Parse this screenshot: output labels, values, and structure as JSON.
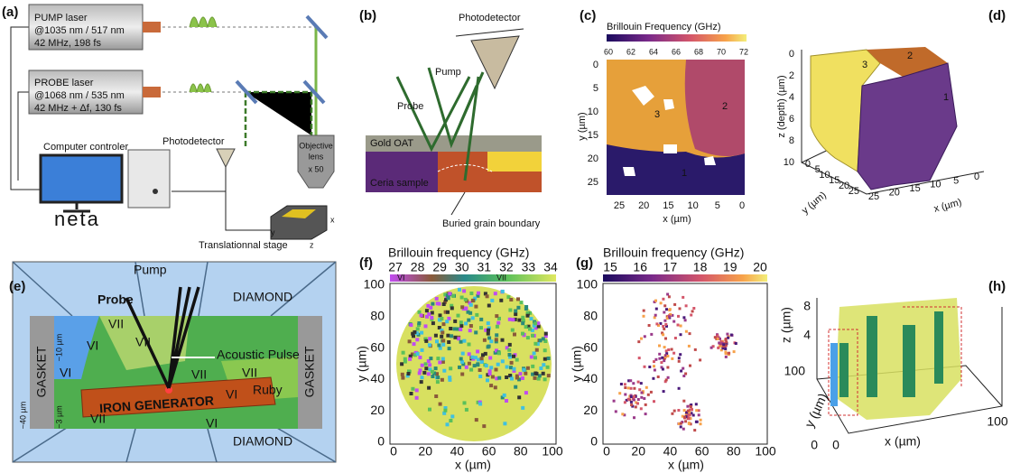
{
  "a": {
    "label": "(a)",
    "pump_laser": [
      "PUMP laser",
      "@1035 nm / 517 nm",
      "42 MHz, 198 fs"
    ],
    "probe_laser": [
      "PROBE laser",
      "@1068 nm / 535 nm",
      "42 MHz + Δf, 130 fs"
    ],
    "computer": "Computer controler",
    "brand": "neta",
    "photodetector": "Photodetector",
    "objective": [
      "Objective",
      "lens",
      "x 50"
    ],
    "stage": "Translationnal stage",
    "stage_axes": [
      "x",
      "y",
      "z"
    ]
  },
  "b": {
    "label": "(b)",
    "photodetector": "Photodetector",
    "pump": "Pump",
    "probe": "Probe",
    "layer": "Gold OAT",
    "sample": "Ceria sample",
    "boundary": "Buried grain boundary"
  },
  "c": {
    "label": "(c)",
    "colorbar_title": "Brillouin Frequency (GHz)",
    "colorbar_ticks": [
      "60",
      "62",
      "64",
      "66",
      "68",
      "70",
      "72"
    ],
    "x_label": "x (µm)",
    "y_label": "y (µm)",
    "x_ticks": [
      "25",
      "20",
      "15",
      "10",
      "5",
      "0"
    ],
    "y_ticks": [
      "0",
      "5",
      "10",
      "15",
      "20",
      "25"
    ],
    "regions": [
      "1",
      "2",
      "3"
    ]
  },
  "d": {
    "label": "(d)",
    "z_label": "z (depth) (µm)",
    "y_label": "y (µm)",
    "x_label": "x (µm)",
    "z_ticks": [
      "0",
      "2",
      "4",
      "6",
      "8",
      "10"
    ],
    "y_ticks": [
      "0",
      "5",
      "10",
      "15",
      "20",
      "25"
    ],
    "x_ticks": [
      "25",
      "20",
      "15",
      "10",
      "5",
      "0"
    ],
    "regions": [
      "3",
      "2",
      "1"
    ]
  },
  "e": {
    "label": "(e)",
    "pump": "Pump",
    "probe": "Probe",
    "diamond": [
      "DIAMOND",
      "DIAMOND"
    ],
    "gasket": [
      "GASKET",
      "GASKET"
    ],
    "acoustic": "Acoustic Pulse",
    "generator": "IRON GENERATOR",
    "ruby": "Ruby",
    "phases": [
      "VII",
      "VI",
      "VII",
      "VII",
      "VII",
      "VI",
      "VII",
      "VI",
      "VI"
    ],
    "dims": [
      "~10 µm",
      "~40 µm",
      "~3 µm"
    ]
  },
  "f": {
    "label": "(f)",
    "colorbar_title": "Brillouin frequency (GHz)",
    "colorbar_ticks": [
      "27",
      "28",
      "29",
      "30",
      "31",
      "32",
      "33",
      "34"
    ],
    "phase_tags": [
      "VI",
      "VII"
    ],
    "x_label": "x (µm)",
    "y_label": "y (µm)",
    "x_ticks": [
      "0",
      "20",
      "40",
      "60",
      "80",
      "100"
    ],
    "y_ticks": [
      "0",
      "20",
      "40",
      "60",
      "80",
      "100"
    ]
  },
  "g": {
    "label": "(g)",
    "colorbar_title": "Brillouin frequency (GHz)",
    "colorbar_ticks": [
      "15",
      "16",
      "17",
      "18",
      "19",
      "20"
    ],
    "x_label": "x (µm)",
    "y_label": "y (µm)",
    "x_ticks": [
      "0",
      "20",
      "40",
      "60",
      "80",
      "100"
    ],
    "y_ticks": [
      "0",
      "20",
      "40",
      "60",
      "80",
      "100"
    ]
  },
  "h": {
    "label": "(h)",
    "z_label": "z (µm)",
    "z_ticks": [
      "4",
      "8"
    ],
    "y_label": "y (µm)",
    "y_ticks": [
      "100",
      "0"
    ],
    "x_label": "x (µm)",
    "x_ticks": [
      "0",
      "100"
    ]
  }
}
